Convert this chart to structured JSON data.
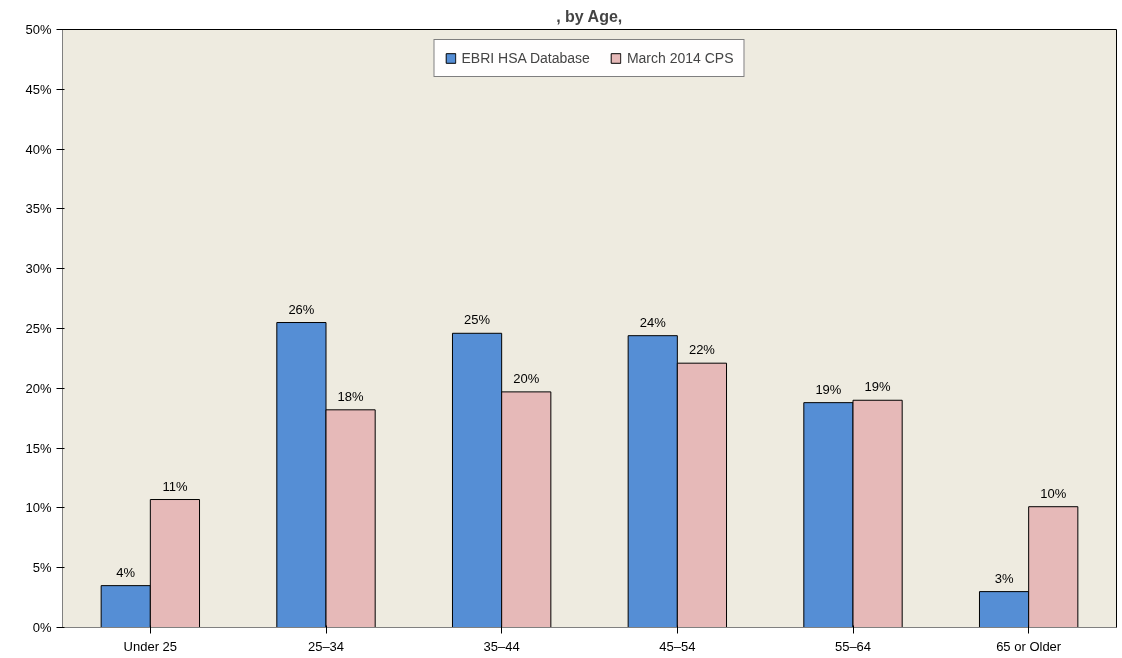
{
  "chart_data": {
    "type": "bar",
    "title": ", by Age,",
    "categories": [
      "Under 25",
      "25–34",
      "35–44",
      "45–54",
      "55–64",
      "65 or Older"
    ],
    "series": [
      {
        "name": "EBRI HSA Database",
        "color": "#558ed5",
        "values": [
          3.5,
          25.5,
          24.6,
          24.4,
          18.8,
          3.0
        ],
        "value_labels": [
          "4%",
          "26%",
          "25%",
          "24%",
          "19%",
          "3%"
        ]
      },
      {
        "name": "March 2014 CPS",
        "color": "#e6b9b8",
        "values": [
          10.7,
          18.2,
          19.7,
          22.1,
          19.0,
          10.1
        ],
        "value_labels": [
          "11%",
          "18%",
          "20%",
          "22%",
          "19%",
          "10%"
        ]
      }
    ],
    "ylim": [
      0,
      50
    ],
    "yticks": [
      {
        "value": 0,
        "label": "0%"
      },
      {
        "value": 5,
        "label": "5%"
      },
      {
        "value": 10,
        "label": "10%"
      },
      {
        "value": 15,
        "label": "15%"
      },
      {
        "value": 20,
        "label": "20%"
      },
      {
        "value": 25,
        "label": "25%"
      },
      {
        "value": 30,
        "label": "30%"
      },
      {
        "value": 35,
        "label": "35%"
      },
      {
        "value": 40,
        "label": "40%"
      },
      {
        "value": 45,
        "label": "45%"
      },
      {
        "value": 50,
        "label": "50%"
      }
    ],
    "grid": false,
    "legend": "top"
  }
}
